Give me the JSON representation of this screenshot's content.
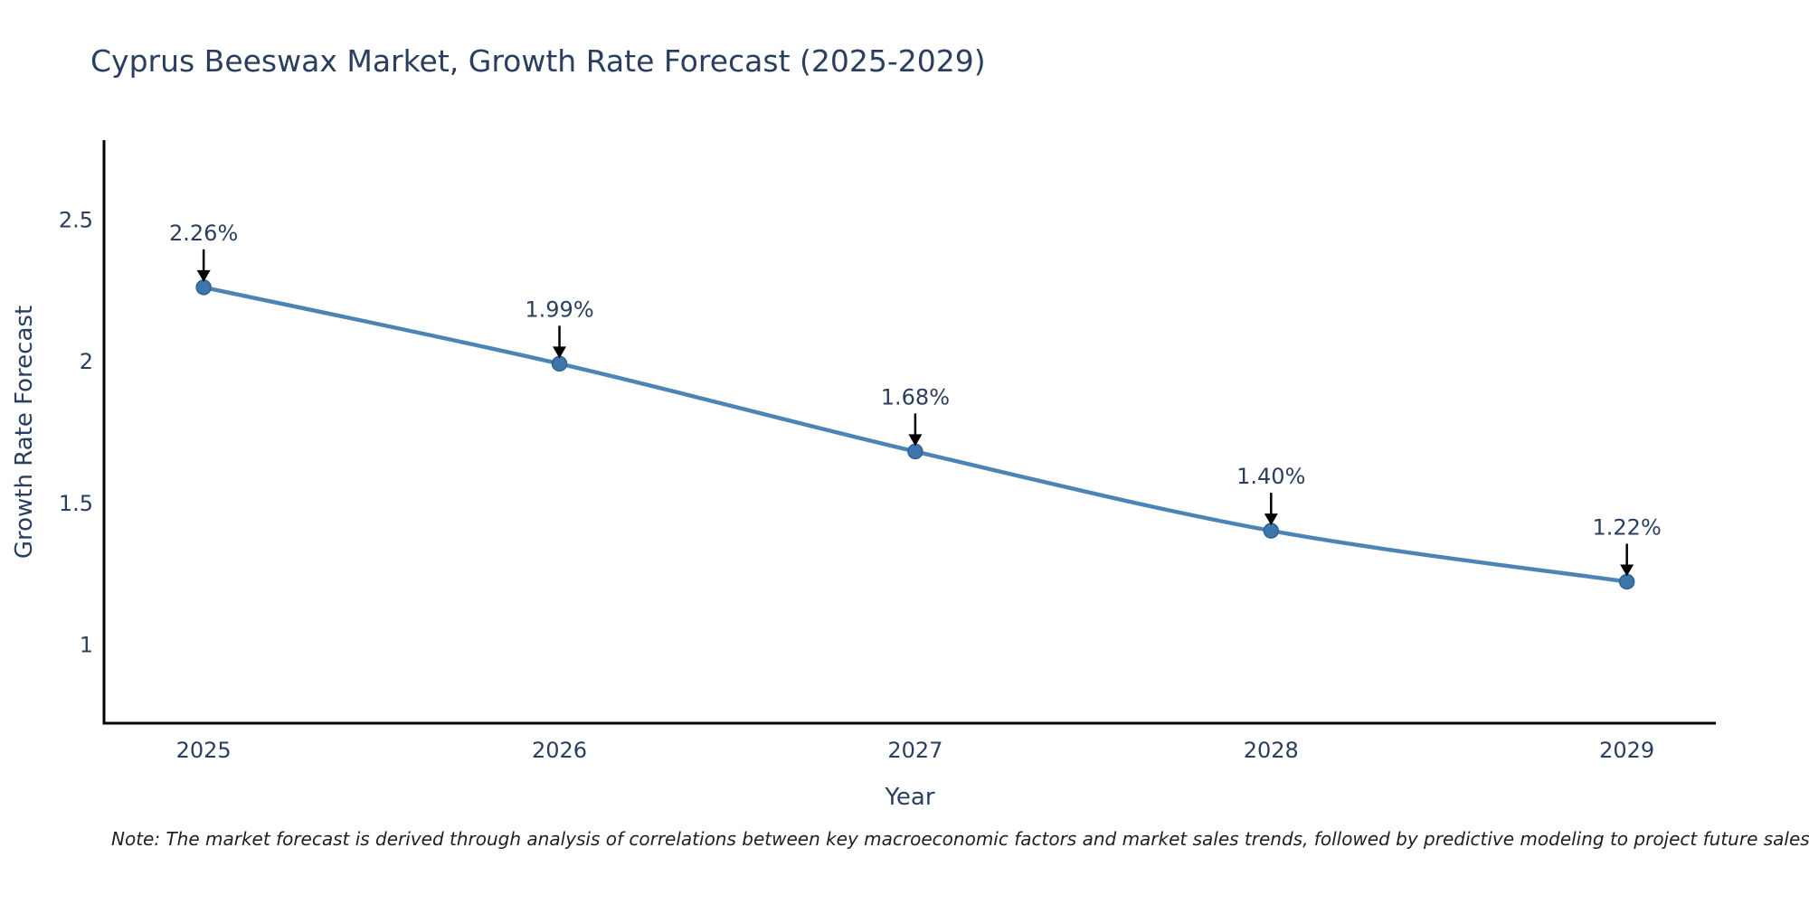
{
  "title": "Cyprus Beeswax Market, Growth Rate Forecast (2025-2029)",
  "note": "Note: The market forecast is derived through analysis of correlations between key macroeconomic factors and market sales trends, followed by predictive modeling to project future sales",
  "chart_data": {
    "type": "line",
    "title": "Cyprus Beeswax Market, Growth Rate Forecast (2025-2029)",
    "xlabel": "Year",
    "ylabel": "Growth Rate Forecast",
    "line_shape": "spline",
    "grid": false,
    "legend_position": "none",
    "x": [
      2025,
      2026,
      2027,
      2028,
      2029
    ],
    "values": [
      2.26,
      1.99,
      1.68,
      1.4,
      1.22
    ],
    "point_labels": [
      "2.26%",
      "1.99%",
      "1.68%",
      "1.40%",
      "1.22%"
    ],
    "xtick_labels": [
      "2025",
      "2026",
      "2027",
      "2028",
      "2029"
    ],
    "yticks": [
      1,
      1.5,
      2,
      2.5
    ],
    "ytick_labels": [
      "1",
      "1.5",
      "2",
      "2.5"
    ],
    "xlim": [
      2024.72,
      2029.25
    ],
    "ylim": [
      0.72,
      2.78
    ],
    "colors": {
      "line": "#4c84b5",
      "marker": "#3d76ab",
      "marker_edge": "#31618f",
      "axis": "#000000",
      "text": "#2a3f5f",
      "arrow": "#000000",
      "note_text": "#1f1f1f",
      "background": "#ffffff"
    }
  }
}
